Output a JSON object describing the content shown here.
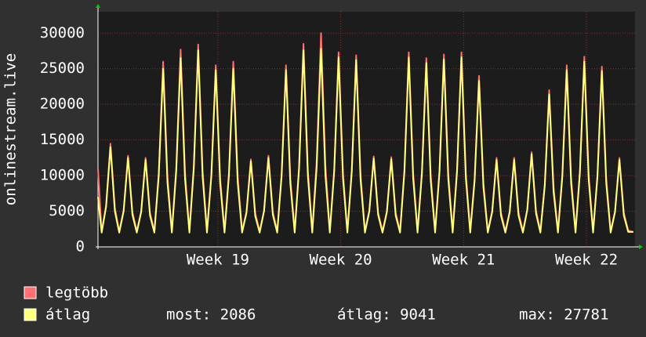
{
  "chart_data": {
    "type": "line",
    "y_label": "onlinestream.live",
    "xlim": [
      0,
      30.6
    ],
    "ylim": [
      0,
      33000
    ],
    "yticks": [
      0,
      5000,
      10000,
      15000,
      20000,
      25000,
      30000
    ],
    "xticks": [
      {
        "value": 6.83,
        "label": "Week 19"
      },
      {
        "value": 13.83,
        "label": "Week 20"
      },
      {
        "value": 20.83,
        "label": "Week 21"
      },
      {
        "value": 27.83,
        "label": "Week 22"
      }
    ],
    "grid": true,
    "x": [
      0,
      0.21,
      0.46,
      0.71,
      0.96,
      1.21,
      1.46,
      1.71,
      1.96,
      2.21,
      2.46,
      2.71,
      2.96,
      3.21,
      3.46,
      3.71,
      3.96,
      4.21,
      4.46,
      4.71,
      4.96,
      5.21,
      5.46,
      5.71,
      5.96,
      6.21,
      6.46,
      6.71,
      6.96,
      7.21,
      7.46,
      7.71,
      7.96,
      8.21,
      8.46,
      8.71,
      8.96,
      9.21,
      9.46,
      9.71,
      9.96,
      10.21,
      10.46,
      10.71,
      10.96,
      11.21,
      11.46,
      11.71,
      11.96,
      12.21,
      12.46,
      12.71,
      12.96,
      13.21,
      13.46,
      13.71,
      13.96,
      14.21,
      14.46,
      14.71,
      14.96,
      15.21,
      15.46,
      15.71,
      15.96,
      16.21,
      16.46,
      16.71,
      16.96,
      17.21,
      17.46,
      17.71,
      17.96,
      18.21,
      18.46,
      18.71,
      18.96,
      19.21,
      19.46,
      19.71,
      19.96,
      20.21,
      20.46,
      20.71,
      20.96,
      21.21,
      21.46,
      21.71,
      21.96,
      22.21,
      22.46,
      22.71,
      22.96,
      23.21,
      23.46,
      23.71,
      23.96,
      24.21,
      24.46,
      24.71,
      24.96,
      25.21,
      25.46,
      25.71,
      25.96,
      26.21,
      26.46,
      26.71,
      26.96,
      27.21,
      27.46,
      27.71,
      27.96,
      28.21,
      28.46,
      28.71,
      28.96,
      29.21,
      29.46,
      29.71,
      29.96,
      30.21,
      30.5
    ],
    "series": [
      {
        "name": "legtöbb",
        "color": "#ff7070",
        "values": [
          11000,
          2200,
          5800,
          14500,
          5500,
          2200,
          5100,
          12800,
          4900,
          2200,
          5000,
          12500,
          4800,
          2200,
          10400,
          26000,
          9900,
          2200,
          11100,
          27700,
          10500,
          2200,
          11400,
          28400,
          10800,
          2200,
          10200,
          25500,
          9700,
          2200,
          10400,
          26000,
          9900,
          2200,
          4900,
          12300,
          4700,
          2200,
          5100,
          12800,
          4900,
          2200,
          10200,
          25500,
          9700,
          2200,
          11400,
          28500,
          10800,
          2200,
          12000,
          30000,
          11400,
          2200,
          10900,
          27300,
          10400,
          2200,
          10800,
          26900,
          10200,
          2200,
          5100,
          12700,
          4800,
          2200,
          5000,
          12600,
          4800,
          2200,
          10900,
          27300,
          10400,
          2200,
          10600,
          26500,
          10100,
          2200,
          10800,
          27000,
          10300,
          2200,
          10900,
          27300,
          10400,
          2200,
          9600,
          24000,
          9100,
          2200,
          5000,
          12500,
          4800,
          2200,
          5000,
          12500,
          4800,
          2200,
          5300,
          13300,
          5100,
          2200,
          8800,
          22000,
          8400,
          2200,
          10200,
          25500,
          9700,
          2200,
          10700,
          26700,
          10100,
          2200,
          10100,
          25300,
          9600,
          2200,
          5000,
          12500,
          4800,
          2300,
          2100
        ]
      },
      {
        "name": "átlag",
        "color": "#ffff80",
        "values": [
          7000,
          2000,
          5600,
          14000,
          5000,
          2000,
          5000,
          12500,
          4500,
          2000,
          4900,
          12200,
          4400,
          2000,
          10000,
          25000,
          9000,
          2000,
          10600,
          26500,
          9500,
          2000,
          11000,
          27600,
          9900,
          2000,
          9900,
          24800,
          8900,
          2000,
          10000,
          25000,
          9000,
          2000,
          4800,
          12000,
          4300,
          2000,
          5000,
          12500,
          4500,
          2000,
          9900,
          24800,
          8900,
          2000,
          11000,
          27600,
          9900,
          2000,
          11100,
          27781,
          10000,
          2000,
          10600,
          26600,
          9600,
          2000,
          10500,
          26200,
          9400,
          2000,
          5000,
          12400,
          4500,
          2000,
          4900,
          12300,
          4400,
          2000,
          10600,
          26600,
          9600,
          2000,
          10300,
          25800,
          9300,
          2000,
          10500,
          26300,
          9500,
          2000,
          10600,
          26600,
          9600,
          2000,
          9300,
          23300,
          8400,
          2000,
          4900,
          12200,
          4400,
          2000,
          4900,
          12200,
          4400,
          2000,
          5200,
          13000,
          4700,
          2000,
          8600,
          21400,
          7700,
          2000,
          9900,
          24800,
          8900,
          2000,
          10400,
          26000,
          9400,
          2000,
          9900,
          24700,
          8900,
          2000,
          4900,
          12200,
          4400,
          2100,
          2086
        ]
      }
    ],
    "legend_stats": [
      "most: 2086",
      "átlag: 9041",
      "max: 27781"
    ]
  }
}
